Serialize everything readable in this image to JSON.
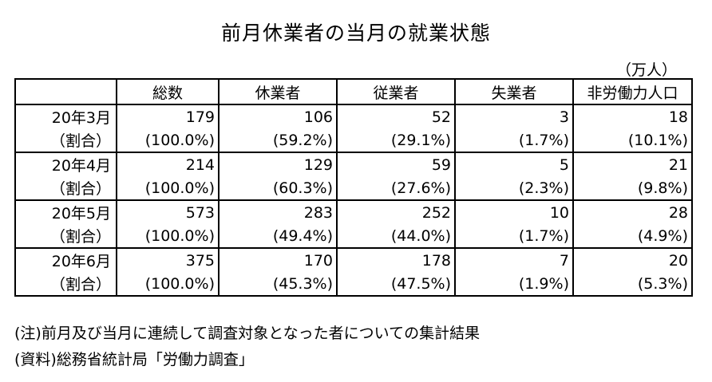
{
  "title": "前月休業者の当月の就業状態",
  "unit": "（万人）",
  "headers": [
    "",
    "総数",
    "休業者",
    "従業者",
    "失業者",
    "非労働力人口"
  ],
  "rows": [
    {
      "month": "20年3月",
      "ratio_label": "（割合）",
      "values": [
        "179",
        "106",
        "52",
        "3",
        "18"
      ],
      "ratios": [
        "(100.0%)",
        "(59.2%)",
        "(29.1%)",
        "(1.7%)",
        "(10.1%)"
      ]
    },
    {
      "month": "20年4月",
      "ratio_label": "（割合）",
      "values": [
        "214",
        "129",
        "59",
        "5",
        "21"
      ],
      "ratios": [
        "(100.0%)",
        "(60.3%)",
        "(27.6%)",
        "(2.3%)",
        "(9.8%)"
      ]
    },
    {
      "month": "20年5月",
      "ratio_label": "（割合）",
      "values": [
        "573",
        "283",
        "252",
        "10",
        "28"
      ],
      "ratios": [
        "(100.0%)",
        "(49.4%)",
        "(44.0%)",
        "(1.7%)",
        "(4.9%)"
      ]
    },
    {
      "month": "20年6月",
      "ratio_label": "（割合）",
      "values": [
        "375",
        "170",
        "178",
        "7",
        "20"
      ],
      "ratios": [
        "(100.0%)",
        "(45.3%)",
        "(47.5%)",
        "(1.9%)",
        "(5.3%)"
      ]
    }
  ],
  "notes": [
    "(注)前月及び当月に連続して調査対象となった者についての集計結果",
    "(資料)総務省統計局「労働力調査」"
  ]
}
